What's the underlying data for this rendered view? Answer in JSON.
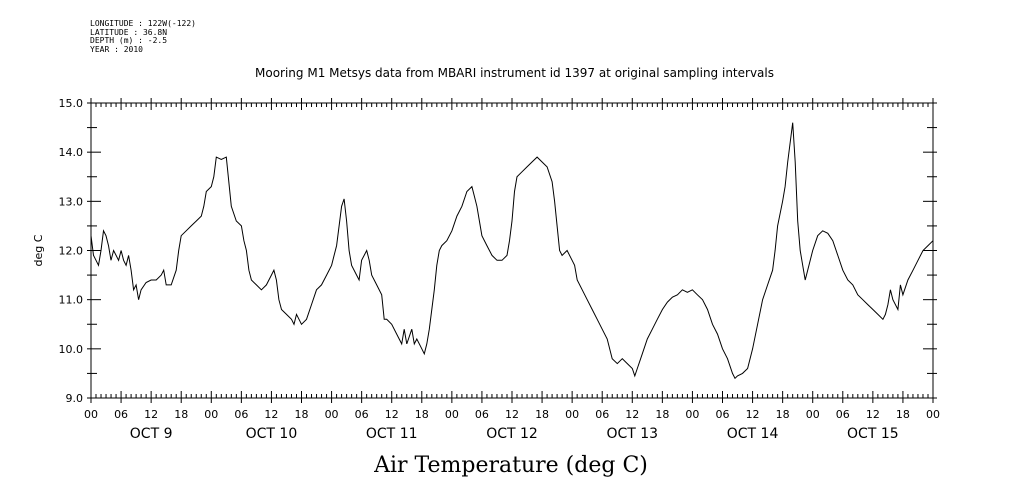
{
  "metadata": {
    "longitude": "LONGITUDE : 122W(-122)",
    "latitude": "LATITUDE : 36.8N",
    "depth": "DEPTH (m) : -2.5",
    "year": "YEAR : 2010"
  },
  "chart_data": {
    "type": "line",
    "title": "Mooring M1 Metsys data from MBARI instrument id 1397 at original sampling intervals",
    "xlabel": "Air Temperature (deg C)",
    "ylabel": "deg C",
    "ylim": [
      9.0,
      15.0
    ],
    "yticks": [
      "9.0",
      "10.0",
      "11.0",
      "12.0",
      "13.0",
      "14.0",
      "15.0"
    ],
    "xlim_hours": [
      0,
      168
    ],
    "hour_tick_labels": [
      "00",
      "06",
      "12",
      "18",
      "00",
      "06",
      "12",
      "18",
      "00",
      "06",
      "12",
      "18",
      "00",
      "06",
      "12",
      "18",
      "00",
      "06",
      "12",
      "18",
      "00",
      "06",
      "12",
      "18",
      "00",
      "06",
      "12",
      "18",
      "00"
    ],
    "day_labels": [
      "OCT  9",
      "OCT 10",
      "OCT 11",
      "OCT 12",
      "OCT 13",
      "OCT 14",
      "OCT 15"
    ],
    "grid": false,
    "series": [
      {
        "color": "#000000",
        "points": [
          [
            0,
            12.3
          ],
          [
            0.5,
            11.9
          ],
          [
            1,
            11.8
          ],
          [
            1.5,
            11.7
          ],
          [
            2,
            12.0
          ],
          [
            2.5,
            12.4
          ],
          [
            3,
            12.3
          ],
          [
            3.5,
            12.1
          ],
          [
            4,
            11.8
          ],
          [
            4.5,
            12.0
          ],
          [
            5,
            11.9
          ],
          [
            5.5,
            11.8
          ],
          [
            6,
            12.0
          ],
          [
            6.5,
            11.8
          ],
          [
            7,
            11.7
          ],
          [
            7.5,
            11.9
          ],
          [
            8,
            11.6
          ],
          [
            8.5,
            11.2
          ],
          [
            9,
            11.3
          ],
          [
            9.5,
            11.0
          ],
          [
            10,
            11.2
          ],
          [
            11,
            11.35
          ],
          [
            12,
            11.4
          ],
          [
            13,
            11.4
          ],
          [
            14,
            11.5
          ],
          [
            14.5,
            11.6
          ],
          [
            15,
            11.3
          ],
          [
            16,
            11.3
          ],
          [
            17,
            11.6
          ],
          [
            17.5,
            12.0
          ],
          [
            18,
            12.3
          ],
          [
            19,
            12.4
          ],
          [
            20,
            12.5
          ],
          [
            21,
            12.6
          ],
          [
            22,
            12.7
          ],
          [
            22.5,
            12.9
          ],
          [
            23,
            13.2
          ],
          [
            24,
            13.3
          ],
          [
            24.5,
            13.5
          ],
          [
            25,
            13.9
          ],
          [
            26,
            13.85
          ],
          [
            27,
            13.9
          ],
          [
            27.5,
            13.4
          ],
          [
            28,
            12.9
          ],
          [
            29,
            12.6
          ],
          [
            30,
            12.5
          ],
          [
            30.5,
            12.2
          ],
          [
            31,
            12.0
          ],
          [
            31.5,
            11.6
          ],
          [
            32,
            11.4
          ],
          [
            33,
            11.3
          ],
          [
            34,
            11.2
          ],
          [
            35,
            11.3
          ],
          [
            36,
            11.5
          ],
          [
            36.5,
            11.6
          ],
          [
            37,
            11.4
          ],
          [
            37.5,
            11.0
          ],
          [
            38,
            10.8
          ],
          [
            39,
            10.7
          ],
          [
            40,
            10.6
          ],
          [
            40.5,
            10.5
          ],
          [
            41,
            10.7
          ],
          [
            41.5,
            10.6
          ],
          [
            42,
            10.5
          ],
          [
            43,
            10.6
          ],
          [
            44,
            10.9
          ],
          [
            45,
            11.2
          ],
          [
            46,
            11.3
          ],
          [
            47,
            11.5
          ],
          [
            48,
            11.7
          ],
          [
            48.5,
            11.9
          ],
          [
            49,
            12.1
          ],
          [
            49.5,
            12.5
          ],
          [
            50,
            12.9
          ],
          [
            50.5,
            13.05
          ],
          [
            51,
            12.6
          ],
          [
            51.5,
            12.0
          ],
          [
            52,
            11.7
          ],
          [
            53,
            11.5
          ],
          [
            53.5,
            11.4
          ],
          [
            54,
            11.8
          ],
          [
            55,
            12.0
          ],
          [
            55.5,
            11.8
          ],
          [
            56,
            11.5
          ],
          [
            57,
            11.3
          ],
          [
            58,
            11.1
          ],
          [
            58.5,
            10.6
          ],
          [
            59,
            10.6
          ],
          [
            60,
            10.5
          ],
          [
            61,
            10.3
          ],
          [
            62,
            10.1
          ],
          [
            62.5,
            10.4
          ],
          [
            63,
            10.1
          ],
          [
            64,
            10.4
          ],
          [
            64.5,
            10.1
          ],
          [
            65,
            10.2
          ],
          [
            66,
            10.0
          ],
          [
            66.5,
            9.9
          ],
          [
            67,
            10.1
          ],
          [
            67.5,
            10.4
          ],
          [
            68,
            10.8
          ],
          [
            68.5,
            11.2
          ],
          [
            69,
            11.7
          ],
          [
            69.5,
            12.0
          ],
          [
            70,
            12.1
          ],
          [
            71,
            12.2
          ],
          [
            72,
            12.4
          ],
          [
            73,
            12.7
          ],
          [
            74,
            12.9
          ],
          [
            75,
            13.2
          ],
          [
            76,
            13.3
          ],
          [
            76.5,
            13.1
          ],
          [
            77,
            12.9
          ],
          [
            77.5,
            12.6
          ],
          [
            78,
            12.3
          ],
          [
            79,
            12.1
          ],
          [
            80,
            11.9
          ],
          [
            81,
            11.8
          ],
          [
            82,
            11.8
          ],
          [
            83,
            11.9
          ],
          [
            83.5,
            12.2
          ],
          [
            84,
            12.6
          ],
          [
            84.5,
            13.2
          ],
          [
            85,
            13.5
          ],
          [
            86,
            13.6
          ],
          [
            87,
            13.7
          ],
          [
            88,
            13.8
          ],
          [
            89,
            13.9
          ],
          [
            90,
            13.8
          ],
          [
            91,
            13.7
          ],
          [
            92,
            13.4
          ],
          [
            92.5,
            13.0
          ],
          [
            93,
            12.5
          ],
          [
            93.5,
            12.0
          ],
          [
            94,
            11.9
          ],
          [
            95,
            12.0
          ],
          [
            96,
            11.8
          ],
          [
            96.5,
            11.7
          ],
          [
            97,
            11.4
          ],
          [
            98,
            11.2
          ],
          [
            99,
            11.0
          ],
          [
            100,
            10.8
          ],
          [
            101,
            10.6
          ],
          [
            102,
            10.4
          ],
          [
            103,
            10.2
          ],
          [
            104,
            9.8
          ],
          [
            105,
            9.7
          ],
          [
            106,
            9.8
          ],
          [
            107,
            9.7
          ],
          [
            108,
            9.6
          ],
          [
            108.5,
            9.45
          ],
          [
            109,
            9.6
          ],
          [
            110,
            9.9
          ],
          [
            111,
            10.2
          ],
          [
            112,
            10.4
          ],
          [
            113,
            10.6
          ],
          [
            114,
            10.8
          ],
          [
            115,
            10.95
          ],
          [
            116,
            11.05
          ],
          [
            117,
            11.1
          ],
          [
            118,
            11.2
          ],
          [
            119,
            11.15
          ],
          [
            120,
            11.2
          ],
          [
            121,
            11.1
          ],
          [
            122,
            11.0
          ],
          [
            123,
            10.8
          ],
          [
            124,
            10.5
          ],
          [
            125,
            10.3
          ],
          [
            126,
            10.0
          ],
          [
            127,
            9.8
          ],
          [
            128,
            9.5
          ],
          [
            128.5,
            9.4
          ],
          [
            129,
            9.45
          ],
          [
            130,
            9.5
          ],
          [
            131,
            9.6
          ],
          [
            132,
            10.0
          ],
          [
            133,
            10.5
          ],
          [
            134,
            11.0
          ],
          [
            135,
            11.3
          ],
          [
            136,
            11.6
          ],
          [
            136.5,
            12.0
          ],
          [
            137,
            12.5
          ],
          [
            138,
            13.0
          ],
          [
            138.5,
            13.3
          ],
          [
            139,
            13.8
          ],
          [
            139.5,
            14.2
          ],
          [
            140,
            14.6
          ],
          [
            140.5,
            13.8
          ],
          [
            141,
            12.6
          ],
          [
            141.5,
            12.0
          ],
          [
            142,
            11.7
          ],
          [
            142.5,
            11.4
          ],
          [
            143,
            11.6
          ],
          [
            144,
            12.0
          ],
          [
            145,
            12.3
          ],
          [
            146,
            12.4
          ],
          [
            147,
            12.35
          ],
          [
            148,
            12.2
          ],
          [
            149,
            11.9
          ],
          [
            150,
            11.6
          ],
          [
            151,
            11.4
          ],
          [
            152,
            11.3
          ],
          [
            153,
            11.1
          ],
          [
            154,
            11.0
          ],
          [
            155,
            10.9
          ],
          [
            156,
            10.8
          ],
          [
            157,
            10.7
          ],
          [
            158,
            10.6
          ],
          [
            158.5,
            10.7
          ],
          [
            159,
            10.9
          ],
          [
            159.5,
            11.2
          ],
          [
            160,
            11.0
          ],
          [
            161,
            10.8
          ],
          [
            161.5,
            11.3
          ],
          [
            162,
            11.1
          ],
          [
            163,
            11.4
          ],
          [
            164,
            11.6
          ],
          [
            165,
            11.8
          ],
          [
            166,
            12.0
          ],
          [
            167,
            12.1
          ],
          [
            168,
            12.2
          ]
        ]
      }
    ]
  }
}
